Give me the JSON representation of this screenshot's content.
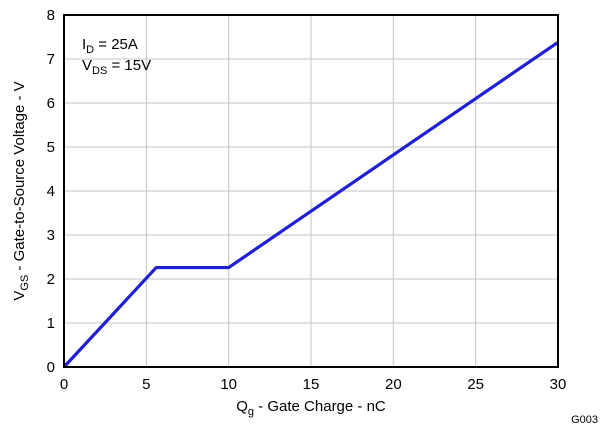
{
  "chart_data": {
    "type": "line",
    "xlabel": {
      "main": "Q",
      "sub": "g",
      "rest": " - Gate Charge - nC"
    },
    "ylabel": {
      "main": "V",
      "sub": "GS",
      "rest": " - Gate-to-Source Voltage - V"
    },
    "xlim": [
      0,
      30
    ],
    "ylim": [
      0,
      8
    ],
    "x_ticks": [
      0,
      5,
      10,
      15,
      20,
      25,
      30
    ],
    "y_ticks": [
      0,
      1,
      2,
      3,
      4,
      5,
      6,
      7,
      8
    ],
    "grid": true,
    "series": [
      {
        "color": "#1f1fd6",
        "points": [
          {
            "x": 0,
            "y": 0
          },
          {
            "x": 5.6,
            "y": 2.26
          },
          {
            "x": 10.0,
            "y": 2.26
          },
          {
            "x": 30.0,
            "y": 7.38
          }
        ]
      }
    ],
    "annotations": [
      {
        "main": "I",
        "sub": "D",
        "rest": " = 25A"
      },
      {
        "main": "V",
        "sub": "DS",
        "rest": " = 15V"
      }
    ],
    "figure_id": "G003"
  }
}
